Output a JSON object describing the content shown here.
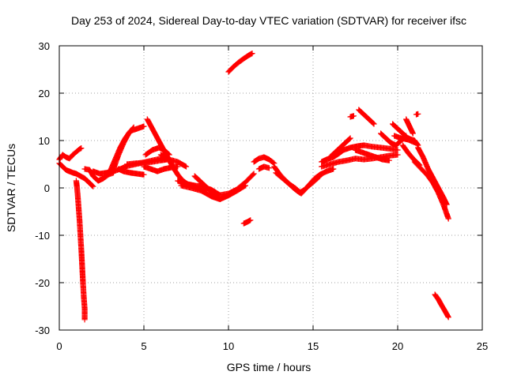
{
  "chart_data": {
    "type": "scatter",
    "title": "Day 253 of 2024, Sidereal Day-to-day VTEC variation (SDTVAR) for receiver ifsc",
    "xlabel": "GPS time / hours",
    "ylabel": "SDTVAR / TECUs",
    "xlim": [
      0,
      25
    ],
    "ylim": [
      -30,
      30
    ],
    "xticks": [
      0,
      5,
      10,
      15,
      20,
      25
    ],
    "yticks": [
      -30,
      -20,
      -10,
      0,
      10,
      20,
      30
    ],
    "xtick_labels": [
      "0",
      "5",
      "10",
      "15",
      "20",
      "25"
    ],
    "ytick_labels": [
      "-30",
      "-20",
      "-10",
      "0",
      "10",
      "20",
      "30"
    ],
    "grid": true,
    "marker": "+",
    "color": "#ff0000",
    "series": [
      {
        "name": "SDTVAR",
        "segments": [
          [
            [
              0.0,
              6.0
            ],
            [
              0.2,
              7.0
            ],
            [
              0.4,
              6.5
            ],
            [
              0.6,
              6.2
            ],
            [
              0.8,
              7.0
            ],
            [
              1.0,
              7.6
            ],
            [
              1.2,
              8.2
            ],
            [
              1.3,
              8.4
            ]
          ],
          [
            [
              0.0,
              5.2
            ],
            [
              0.2,
              4.5
            ],
            [
              0.4,
              3.8
            ],
            [
              0.6,
              3.5
            ],
            [
              0.8,
              3.2
            ],
            [
              1.0,
              3.0
            ],
            [
              1.2,
              2.6
            ],
            [
              1.5,
              2.0
            ],
            [
              1.8,
              1.0
            ],
            [
              2.0,
              0.3
            ]
          ],
          [
            [
              1.0,
              1.5
            ],
            [
              1.05,
              0.0
            ],
            [
              1.1,
              -2.0
            ],
            [
              1.15,
              -4.5
            ],
            [
              1.2,
              -7.0
            ],
            [
              1.25,
              -10.0
            ],
            [
              1.3,
              -13.0
            ],
            [
              1.35,
              -16.5
            ],
            [
              1.4,
              -20.0
            ],
            [
              1.45,
              -23.0
            ],
            [
              1.5,
              -25.5
            ],
            [
              1.5,
              -27.8
            ]
          ],
          [
            [
              1.5,
              4.0
            ],
            [
              1.8,
              3.8
            ],
            [
              2.0,
              2.5
            ],
            [
              2.3,
              1.5
            ],
            [
              2.6,
              2.0
            ],
            [
              2.9,
              2.8
            ],
            [
              3.2,
              3.2
            ]
          ],
          [
            [
              2.0,
              3.5
            ],
            [
              2.4,
              3.0
            ],
            [
              2.8,
              3.2
            ],
            [
              3.2,
              3.5
            ],
            [
              3.6,
              4.0
            ],
            [
              4.0,
              4.6
            ],
            [
              4.5,
              5.0
            ],
            [
              5.0,
              5.4
            ],
            [
              5.5,
              5.8
            ],
            [
              6.0,
              6.2
            ],
            [
              6.3,
              6.4
            ]
          ],
          [
            [
              3.0,
              3.5
            ],
            [
              3.3,
              6.0
            ],
            [
              3.6,
              8.5
            ],
            [
              3.9,
              10.5
            ],
            [
              4.2,
              12.0
            ],
            [
              4.6,
              12.5
            ],
            [
              5.0,
              13.0
            ]
          ],
          [
            [
              3.2,
              4.0
            ],
            [
              3.5,
              7.0
            ],
            [
              3.8,
              9.5
            ],
            [
              4.1,
              11.5
            ],
            [
              4.4,
              12.8
            ]
          ],
          [
            [
              3.5,
              4.0
            ],
            [
              3.8,
              3.5
            ],
            [
              4.2,
              3.2
            ],
            [
              4.6,
              3.0
            ],
            [
              5.0,
              2.8
            ]
          ],
          [
            [
              4.0,
              5.0
            ],
            [
              4.5,
              5.2
            ],
            [
              5.0,
              5.3
            ],
            [
              5.5,
              5.5
            ],
            [
              6.0,
              5.8
            ],
            [
              6.4,
              6.0
            ]
          ],
          [
            [
              5.0,
              4.5
            ],
            [
              5.4,
              4.0
            ],
            [
              5.8,
              3.5
            ],
            [
              6.2,
              4.0
            ],
            [
              6.6,
              4.3
            ],
            [
              7.0,
              4.5
            ]
          ],
          [
            [
              5.1,
              7.0
            ],
            [
              5.5,
              8.0
            ],
            [
              5.9,
              8.5
            ],
            [
              6.2,
              8.0
            ],
            [
              6.5,
              7.0
            ]
          ],
          [
            [
              5.2,
              14.5
            ],
            [
              5.5,
              12.5
            ],
            [
              5.8,
              10.5
            ],
            [
              6.1,
              8.5
            ],
            [
              6.4,
              6.5
            ],
            [
              6.7,
              4.5
            ],
            [
              7.0,
              2.8
            ],
            [
              7.3,
              1.5
            ],
            [
              7.6,
              0.8
            ],
            [
              8.0,
              0.5
            ],
            [
              8.5,
              0.3
            ]
          ],
          [
            [
              6.0,
              7.0
            ],
            [
              6.5,
              6.0
            ],
            [
              7.0,
              5.5
            ],
            [
              7.5,
              4.5
            ]
          ],
          [
            [
              7.0,
              1.5
            ],
            [
              7.5,
              0.8
            ],
            [
              8.0,
              0.4
            ],
            [
              8.5,
              0.2
            ],
            [
              9.0,
              -0.4
            ],
            [
              9.5,
              -1.5
            ],
            [
              10.0,
              -1.2
            ],
            [
              10.5,
              -0.3
            ],
            [
              11.0,
              1.2
            ],
            [
              11.5,
              3.0
            ]
          ],
          [
            [
              7.2,
              0.5
            ],
            [
              7.8,
              0.0
            ],
            [
              8.4,
              -0.6
            ],
            [
              9.0,
              -1.8
            ],
            [
              9.5,
              -2.4
            ],
            [
              10.0,
              -1.6
            ],
            [
              10.5,
              -0.6
            ],
            [
              11.0,
              0.5
            ]
          ],
          [
            [
              8.0,
              2.5
            ],
            [
              8.3,
              1.5
            ],
            [
              8.6,
              0.5
            ],
            [
              8.9,
              -0.5
            ],
            [
              9.2,
              -1.5
            ]
          ],
          [
            [
              10.0,
              24.5
            ],
            [
              10.3,
              25.6
            ],
            [
              10.6,
              26.5
            ],
            [
              10.9,
              27.3
            ],
            [
              11.2,
              28.0
            ],
            [
              11.4,
              28.4
            ]
          ],
          [
            [
              10.9,
              -7.5
            ],
            [
              11.1,
              -7.2
            ],
            [
              11.3,
              -6.8
            ]
          ],
          [
            [
              11.5,
              5.5
            ],
            [
              11.8,
              6.2
            ],
            [
              12.1,
              6.5
            ],
            [
              12.4,
              6.0
            ],
            [
              12.7,
              5.2
            ]
          ],
          [
            [
              11.8,
              4.0
            ],
            [
              12.1,
              4.5
            ],
            [
              12.4,
              4.2
            ]
          ],
          [
            [
              12.7,
              4.5
            ],
            [
              13.0,
              3.0
            ],
            [
              13.3,
              1.8
            ],
            [
              13.6,
              0.8
            ],
            [
              13.9,
              -0.2
            ],
            [
              14.2,
              -1.0
            ],
            [
              14.5,
              -0.4
            ],
            [
              14.8,
              0.8
            ],
            [
              15.1,
              2.0
            ],
            [
              15.4,
              2.8
            ],
            [
              15.8,
              3.5
            ],
            [
              16.2,
              4.0
            ]
          ],
          [
            [
              12.8,
              3.2
            ],
            [
              13.2,
              2.0
            ],
            [
              13.6,
              0.8
            ],
            [
              14.0,
              -0.2
            ],
            [
              14.3,
              -1.2
            ],
            [
              14.6,
              0.0
            ],
            [
              15.0,
              1.2
            ],
            [
              15.4,
              2.5
            ]
          ],
          [
            [
              15.5,
              5.5
            ],
            [
              15.8,
              6.0
            ],
            [
              16.2,
              6.5
            ],
            [
              16.5,
              7.2
            ],
            [
              16.8,
              8.0
            ],
            [
              17.2,
              8.5
            ],
            [
              17.6,
              8.8
            ],
            [
              18.0,
              9.0
            ],
            [
              18.5,
              8.7
            ],
            [
              19.0,
              8.5
            ],
            [
              19.5,
              8.3
            ],
            [
              20.0,
              8.0
            ]
          ],
          [
            [
              15.5,
              4.5
            ],
            [
              16.0,
              5.0
            ],
            [
              16.5,
              5.5
            ],
            [
              17.0,
              5.8
            ],
            [
              17.5,
              6.2
            ],
            [
              18.0,
              6.0
            ],
            [
              18.5,
              6.2
            ],
            [
              19.0,
              6.5
            ],
            [
              19.5,
              6.8
            ],
            [
              20.0,
              7.0
            ]
          ],
          [
            [
              16.0,
              6.5
            ],
            [
              16.3,
              7.5
            ],
            [
              16.6,
              8.5
            ],
            [
              16.9,
              9.5
            ],
            [
              17.2,
              10.5
            ]
          ],
          [
            [
              17.2,
              15.0
            ],
            [
              17.4,
              15.2
            ]
          ],
          [
            [
              17.7,
              16.5
            ],
            [
              18.0,
              15.5
            ],
            [
              18.3,
              14.5
            ],
            [
              18.6,
              13.5
            ]
          ],
          [
            [
              17.5,
              8.0
            ],
            [
              17.9,
              7.5
            ],
            [
              18.3,
              7.0
            ],
            [
              18.7,
              6.5
            ],
            [
              19.1,
              6.0
            ],
            [
              19.5,
              5.8
            ]
          ],
          [
            [
              19.0,
              11.5
            ],
            [
              19.3,
              10.5
            ],
            [
              19.6,
              9.5
            ],
            [
              19.9,
              9.0
            ],
            [
              20.2,
              10.0
            ],
            [
              20.5,
              11.0
            ]
          ],
          [
            [
              19.7,
              13.5
            ],
            [
              20.0,
              12.5
            ],
            [
              20.3,
              11.5
            ],
            [
              20.6,
              10.5
            ],
            [
              21.0,
              10.0
            ],
            [
              21.2,
              9.0
            ]
          ],
          [
            [
              19.8,
              11.0
            ],
            [
              20.2,
              10.5
            ],
            [
              20.6,
              10.2
            ],
            [
              21.0,
              9.6
            ]
          ],
          [
            [
              20.3,
              9.0
            ],
            [
              20.6,
              7.5
            ],
            [
              20.9,
              6.2
            ],
            [
              21.1,
              5.5
            ],
            [
              21.3,
              4.8
            ]
          ],
          [
            [
              20.5,
              14.5
            ],
            [
              20.7,
              13.0
            ],
            [
              20.9,
              11.5
            ]
          ],
          [
            [
              21.1,
              15.5
            ],
            [
              21.2,
              15.6
            ]
          ],
          [
            [
              21.2,
              8.5
            ],
            [
              21.5,
              6.5
            ],
            [
              21.8,
              4.0
            ],
            [
              22.1,
              2.0
            ],
            [
              22.4,
              0.0
            ],
            [
              22.7,
              -2.0
            ],
            [
              22.9,
              -3.5
            ]
          ],
          [
            [
              21.0,
              5.5
            ],
            [
              21.4,
              4.0
            ],
            [
              21.8,
              2.5
            ],
            [
              22.1,
              1.0
            ],
            [
              22.4,
              -1.0
            ],
            [
              22.7,
              -3.5
            ],
            [
              23.0,
              -6.5
            ]
          ],
          [
            [
              22.2,
              -22.5
            ],
            [
              22.4,
              -23.5
            ],
            [
              22.6,
              -24.8
            ],
            [
              22.8,
              -26.0
            ],
            [
              23.0,
              -27.3
            ]
          ]
        ]
      }
    ]
  }
}
